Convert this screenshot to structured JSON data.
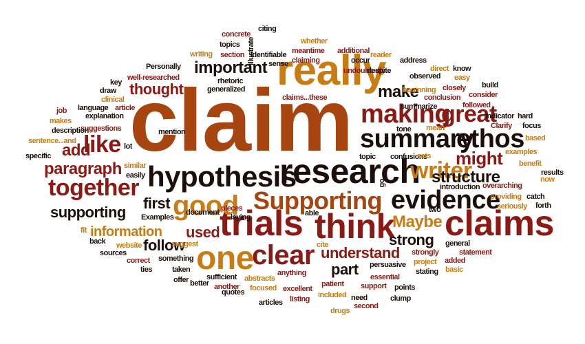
{
  "palette": {
    "dark": "#1c0f0a",
    "maroon": "#8c1a14",
    "brown": "#a6450f",
    "gold": "#c97c12"
  },
  "words": [
    {
      "text": "claim",
      "color": "brown"
    },
    {
      "text": "really",
      "color": "gold"
    },
    {
      "text": "research",
      "color": "dark"
    },
    {
      "text": "hypothesis",
      "color": "dark"
    },
    {
      "text": "think",
      "color": "maroon"
    },
    {
      "text": "claims",
      "color": "maroon"
    },
    {
      "text": "trials",
      "color": "maroon"
    },
    {
      "text": "one",
      "color": "gold"
    },
    {
      "text": "Supporting",
      "color": "brown"
    },
    {
      "text": "clear",
      "color": "maroon"
    },
    {
      "text": "summary",
      "color": "dark"
    },
    {
      "text": "making",
      "color": "maroon"
    },
    {
      "text": "ethos",
      "color": "dark"
    },
    {
      "text": "evidence",
      "color": "dark"
    },
    {
      "text": "good",
      "color": "gold"
    },
    {
      "text": "together",
      "color": "maroon"
    },
    {
      "text": "like",
      "color": "maroon"
    },
    {
      "text": "writer",
      "color": "gold"
    },
    {
      "text": "great",
      "color": "maroon"
    },
    {
      "text": "important",
      "color": "dark"
    },
    {
      "text": "thought",
      "color": "maroon"
    },
    {
      "text": "make",
      "color": "dark"
    },
    {
      "text": "might",
      "color": "maroon"
    },
    {
      "text": "structure",
      "color": "dark"
    },
    {
      "text": "paragraph",
      "color": "maroon"
    },
    {
      "text": "add",
      "color": "maroon"
    },
    {
      "text": "Maybe",
      "color": "gold"
    },
    {
      "text": "strong",
      "color": "dark"
    },
    {
      "text": "understand",
      "color": "maroon"
    },
    {
      "text": "information",
      "color": "gold"
    },
    {
      "text": "supporting",
      "color": "dark"
    },
    {
      "text": "first",
      "color": "dark"
    },
    {
      "text": "used",
      "color": "maroon"
    },
    {
      "text": "follow",
      "color": "dark"
    },
    {
      "text": "part",
      "color": "dark"
    },
    {
      "text": "concrete",
      "color": "maroon"
    },
    {
      "text": "citing",
      "color": "dark"
    },
    {
      "text": "topics",
      "color": "dark"
    },
    {
      "text": "whether",
      "color": "gold"
    },
    {
      "text": "illustrate",
      "color": "dark"
    },
    {
      "text": "writing",
      "color": "gold"
    },
    {
      "text": "section",
      "color": "maroon"
    },
    {
      "text": "identifiable",
      "color": "dark"
    },
    {
      "text": "meantime",
      "color": "maroon"
    },
    {
      "text": "additional",
      "color": "maroon"
    },
    {
      "text": "reader",
      "color": "gold"
    },
    {
      "text": "sense",
      "color": "dark"
    },
    {
      "text": "claiming",
      "color": "maroon"
    },
    {
      "text": "occur",
      "color": "dark"
    },
    {
      "text": "address",
      "color": "dark"
    },
    {
      "text": "Personally",
      "color": "dark"
    },
    {
      "text": "undoubtedly",
      "color": "maroon"
    },
    {
      "text": "despite",
      "color": "dark"
    },
    {
      "text": "direct",
      "color": "gold"
    },
    {
      "text": "know",
      "color": "dark"
    },
    {
      "text": "well-researched",
      "color": "maroon"
    },
    {
      "text": "rhetoric",
      "color": "dark"
    },
    {
      "text": "observed",
      "color": "dark"
    },
    {
      "text": "easy",
      "color": "gold"
    },
    {
      "text": "key",
      "color": "dark"
    },
    {
      "text": "generalized",
      "color": "dark"
    },
    {
      "text": "build",
      "color": "dark"
    },
    {
      "text": "draw",
      "color": "dark"
    },
    {
      "text": "closely",
      "color": "maroon"
    },
    {
      "text": "beginning",
      "color": "gold"
    },
    {
      "text": "consider",
      "color": "maroon"
    },
    {
      "text": "clinical",
      "color": "gold"
    },
    {
      "text": "claims...these",
      "color": "maroon"
    },
    {
      "text": "conclusion",
      "color": "maroon"
    },
    {
      "text": "language",
      "color": "dark"
    },
    {
      "text": "article",
      "color": "maroon"
    },
    {
      "text": "job",
      "color": "maroon"
    },
    {
      "text": "summarize",
      "color": "dark"
    },
    {
      "text": "followed",
      "color": "maroon"
    },
    {
      "text": "explanation",
      "color": "dark"
    },
    {
      "text": "makes",
      "color": "gold"
    },
    {
      "text": "indicator",
      "color": "dark"
    },
    {
      "text": "hard",
      "color": "dark"
    },
    {
      "text": "suggestions",
      "color": "maroon"
    },
    {
      "text": "mean",
      "color": "gold"
    },
    {
      "text": "description",
      "color": "dark"
    },
    {
      "text": "mention",
      "color": "dark"
    },
    {
      "text": "tone",
      "color": "dark"
    },
    {
      "text": "Clarify",
      "color": "maroon"
    },
    {
      "text": "focus",
      "color": "dark"
    },
    {
      "text": "based",
      "color": "gold"
    },
    {
      "text": "sentence...and",
      "color": "gold"
    },
    {
      "text": "lot",
      "color": "dark"
    },
    {
      "text": "specific",
      "color": "dark"
    },
    {
      "text": "topic",
      "color": "dark"
    },
    {
      "text": "confusions",
      "color": "dark"
    },
    {
      "text": "sets",
      "color": "gold"
    },
    {
      "text": "examples",
      "color": "gold"
    },
    {
      "text": "similar",
      "color": "gold"
    },
    {
      "text": "benefit",
      "color": "gold"
    },
    {
      "text": "results",
      "color": "dark"
    },
    {
      "text": "easily",
      "color": "dark"
    },
    {
      "text": "now",
      "color": "gold"
    },
    {
      "text": "go",
      "color": "dark"
    },
    {
      "text": "introduction",
      "color": "dark"
    },
    {
      "text": "overarching",
      "color": "maroon"
    },
    {
      "text": "catch",
      "color": "dark"
    },
    {
      "text": "document",
      "color": "dark"
    },
    {
      "text": "pieces",
      "color": "maroon"
    },
    {
      "text": "laying",
      "color": "dark"
    },
    {
      "text": "providing",
      "color": "gold"
    },
    {
      "text": "forth",
      "color": "dark"
    },
    {
      "text": "seriously",
      "color": "gold"
    },
    {
      "text": "able",
      "color": "dark"
    },
    {
      "text": "two",
      "color": "dark"
    },
    {
      "text": "Examples",
      "color": "dark"
    },
    {
      "text": "fit",
      "color": "gold"
    },
    {
      "text": "back",
      "color": "dark"
    },
    {
      "text": "website",
      "color": "gold"
    },
    {
      "text": "suggest",
      "color": "gold"
    },
    {
      "text": "cite",
      "color": "gold"
    },
    {
      "text": "general",
      "color": "dark"
    },
    {
      "text": "sources",
      "color": "dark"
    },
    {
      "text": "statement",
      "color": "maroon"
    },
    {
      "text": "correct",
      "color": "maroon"
    },
    {
      "text": "something",
      "color": "dark"
    },
    {
      "text": "persuasive",
      "color": "dark"
    },
    {
      "text": "strongly",
      "color": "maroon"
    },
    {
      "text": "added",
      "color": "maroon"
    },
    {
      "text": "project",
      "color": "gold"
    },
    {
      "text": "anything",
      "color": "maroon"
    },
    {
      "text": "ties",
      "color": "dark"
    },
    {
      "text": "taken",
      "color": "dark"
    },
    {
      "text": "essential",
      "color": "maroon"
    },
    {
      "text": "stating",
      "color": "dark"
    },
    {
      "text": "basic",
      "color": "gold"
    },
    {
      "text": "offer",
      "color": "dark"
    },
    {
      "text": "sufficient",
      "color": "dark"
    },
    {
      "text": "abstracts",
      "color": "gold"
    },
    {
      "text": "patient",
      "color": "maroon"
    },
    {
      "text": "better",
      "color": "dark"
    },
    {
      "text": "support",
      "color": "maroon"
    },
    {
      "text": "points",
      "color": "dark"
    },
    {
      "text": "quotes",
      "color": "dark"
    },
    {
      "text": "another",
      "color": "maroon"
    },
    {
      "text": "focused",
      "color": "gold"
    },
    {
      "text": "excellent",
      "color": "maroon"
    },
    {
      "text": "need",
      "color": "dark"
    },
    {
      "text": "listing",
      "color": "maroon"
    },
    {
      "text": "included",
      "color": "gold"
    },
    {
      "text": "second",
      "color": "maroon"
    },
    {
      "text": "clump",
      "color": "dark"
    },
    {
      "text": "articles",
      "color": "dark"
    },
    {
      "text": "drugs",
      "color": "gold"
    }
  ]
}
